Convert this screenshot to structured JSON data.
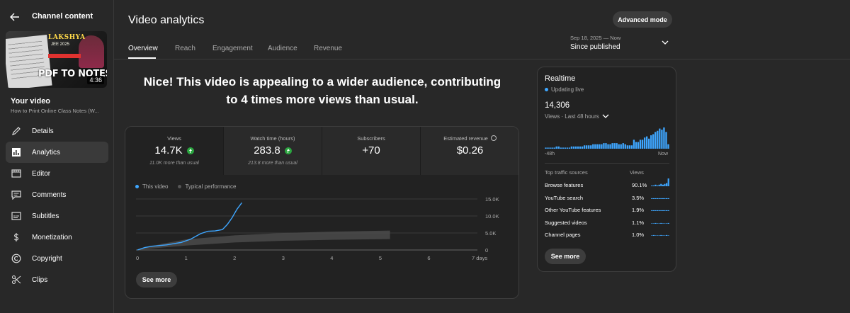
{
  "sidebar": {
    "title": "Channel content",
    "thumbnail": {
      "brand": "LAKSHYA",
      "brand_sub": "JEE 2025",
      "headline": "PDF TO NOTES",
      "duration": "4:36"
    },
    "your_video_label": "Your video",
    "video_title": "How to Print Online Class Notes (W...",
    "items": [
      {
        "label": "Details",
        "icon": "pencil-icon"
      },
      {
        "label": "Analytics",
        "icon": "analytics-icon"
      },
      {
        "label": "Editor",
        "icon": "film-icon"
      },
      {
        "label": "Comments",
        "icon": "comment-icon"
      },
      {
        "label": "Subtitles",
        "icon": "subtitles-icon"
      },
      {
        "label": "Monetization",
        "icon": "dollar-icon"
      },
      {
        "label": "Copyright",
        "icon": "copyright-icon"
      },
      {
        "label": "Clips",
        "icon": "scissors-icon"
      }
    ]
  },
  "header": {
    "title": "Video analytics",
    "advanced_mode": "Advanced mode",
    "tabs": [
      "Overview",
      "Reach",
      "Engagement",
      "Audience",
      "Revenue"
    ],
    "date_range": "Sep 18, 2025 — Now",
    "date_label": "Since published"
  },
  "headline": "Nice! This video is appealing to a wider audience, contributing to 4 times more views than usual.",
  "metrics": [
    {
      "label": "Views",
      "value": "14.7K",
      "note": "11.0K more than usual",
      "up": true
    },
    {
      "label": "Watch time (hours)",
      "value": "283.8",
      "note": "213.8 more than usual",
      "up": true
    },
    {
      "label": "Subscribers",
      "value": "+70",
      "note": "",
      "up": false
    },
    {
      "label": "Estimated revenue",
      "value": "$0.26",
      "note": "",
      "up": false
    }
  ],
  "chart_data": {
    "type": "line",
    "legend": [
      "This video",
      "Typical performance"
    ],
    "x_ticks": [
      "0",
      "1",
      "2",
      "3",
      "4",
      "5",
      "6",
      "7 days"
    ],
    "y_ticks": [
      "0",
      "5.0K",
      "10.0K",
      "15.0K"
    ],
    "ylim": [
      0,
      15000
    ],
    "xlim": [
      0,
      7
    ],
    "series": [
      {
        "name": "This video",
        "points": [
          [
            0,
            0
          ],
          [
            0.15,
            700
          ],
          [
            0.3,
            1100
          ],
          [
            0.6,
            1500
          ],
          [
            0.9,
            2200
          ],
          [
            1.1,
            3200
          ],
          [
            1.3,
            4800
          ],
          [
            1.45,
            5500
          ],
          [
            1.6,
            5600
          ],
          [
            1.75,
            6000
          ],
          [
            1.85,
            7500
          ],
          [
            1.95,
            9500
          ],
          [
            2.05,
            12000
          ],
          [
            2.15,
            13900
          ]
        ]
      },
      {
        "name": "Typical performance",
        "band": [
          [
            0,
            0,
            0
          ],
          [
            0.5,
            700,
            1800
          ],
          [
            1,
            1300,
            3100
          ],
          [
            2,
            2200,
            4300
          ],
          [
            3,
            2700,
            5000
          ],
          [
            4,
            3000,
            5400
          ],
          [
            5.2,
            3200,
            5700
          ]
        ]
      }
    ]
  },
  "overview_see_more": "See more",
  "realtime": {
    "title": "Realtime",
    "live": "Updating live",
    "count": "14,306",
    "subtitle": "Views · Last 48 hours",
    "axis_left": "-48h",
    "axis_right": "Now",
    "bars": [
      1,
      1,
      1,
      1,
      1,
      2,
      2,
      1,
      1,
      1,
      1,
      1,
      2,
      2,
      2,
      2,
      2,
      2,
      3,
      3,
      3,
      3,
      4,
      4,
      4,
      4,
      4,
      5,
      5,
      4,
      4,
      5,
      5,
      5,
      4,
      4,
      5,
      4,
      3,
      3,
      3,
      8,
      6,
      6,
      8,
      8,
      10,
      11,
      9,
      12,
      13,
      15,
      16,
      18,
      17,
      19,
      15,
      4
    ],
    "col_sources": "Top traffic sources",
    "col_views": "Views",
    "sources": [
      {
        "name": "Browse features",
        "pct": "90.1%",
        "spark": [
          1,
          1,
          2,
          1,
          2,
          3,
          2,
          3,
          4,
          10
        ]
      },
      {
        "name": "YouTube search",
        "pct": "3.5%",
        "spark": [
          1,
          1,
          1,
          1,
          1,
          1,
          1,
          1,
          1,
          1
        ]
      },
      {
        "name": "Other YouTube features",
        "pct": "1.9%",
        "spark": [
          1,
          1,
          1,
          1,
          1,
          1,
          1,
          1,
          1,
          1
        ]
      },
      {
        "name": "Suggested videos",
        "pct": "1.1%",
        "spark": [
          0,
          0,
          1,
          0,
          0,
          1,
          0,
          0,
          0,
          1
        ]
      },
      {
        "name": "Channel pages",
        "pct": "1.0%",
        "spark": [
          0,
          1,
          0,
          0,
          0,
          1,
          0,
          0,
          1,
          0
        ]
      }
    ],
    "see_more": "See more"
  },
  "colors": {
    "accent": "#3ea6ff",
    "up_green": "#2ba640",
    "typical": "#4a4a4a"
  }
}
